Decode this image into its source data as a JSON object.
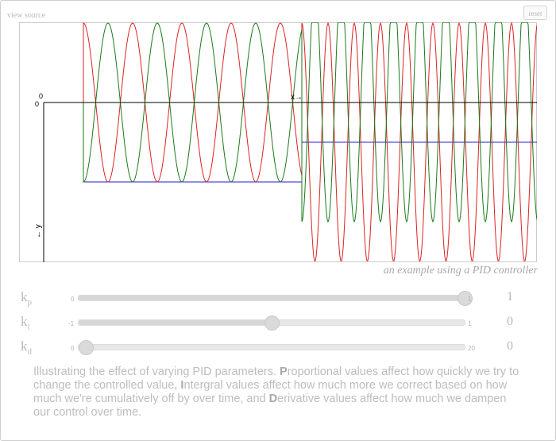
{
  "header": {
    "view_source_label": "view source",
    "reset_label": "reset"
  },
  "chart": {
    "origin_label_x": "0",
    "origin_label_y": "0",
    "x_axis_label": "x→",
    "y_axis_label": "← y",
    "caption": "an example using a PID controller"
  },
  "colors": {
    "setpoint": "#2222cc",
    "output": "#dd2222",
    "control": "#1a7a1a",
    "axis": "#000000"
  },
  "chart_data": {
    "type": "line",
    "series_colors": [
      "#2222cc",
      "#dd2222",
      "#1a7a1a"
    ],
    "grid": false
  },
  "sliders": [
    {
      "name": "k",
      "sub": "p",
      "min_label": "0",
      "max_label": "1",
      "value_label": "1",
      "fraction": 1.0
    },
    {
      "name": "k",
      "sub": "i",
      "min_label": "-1",
      "max_label": "1",
      "value_label": "0",
      "fraction": 0.5
    },
    {
      "name": "k",
      "sub": "d",
      "min_label": "0",
      "max_label": "20",
      "value_label": "0",
      "fraction": 0.0
    }
  ],
  "description": {
    "s1": "Illustrating the effect of varying PID parameters. ",
    "p_letter": "P",
    "s2": "roportional values affect how quickly we try to change the controlled value, ",
    "i_letter": "I",
    "s3": "ntergral values affect how much more we correct based on how much we're cumulatively off by over time, and ",
    "d_letter": "D",
    "s4": "erivative values affect how much we dampen our control over time."
  }
}
